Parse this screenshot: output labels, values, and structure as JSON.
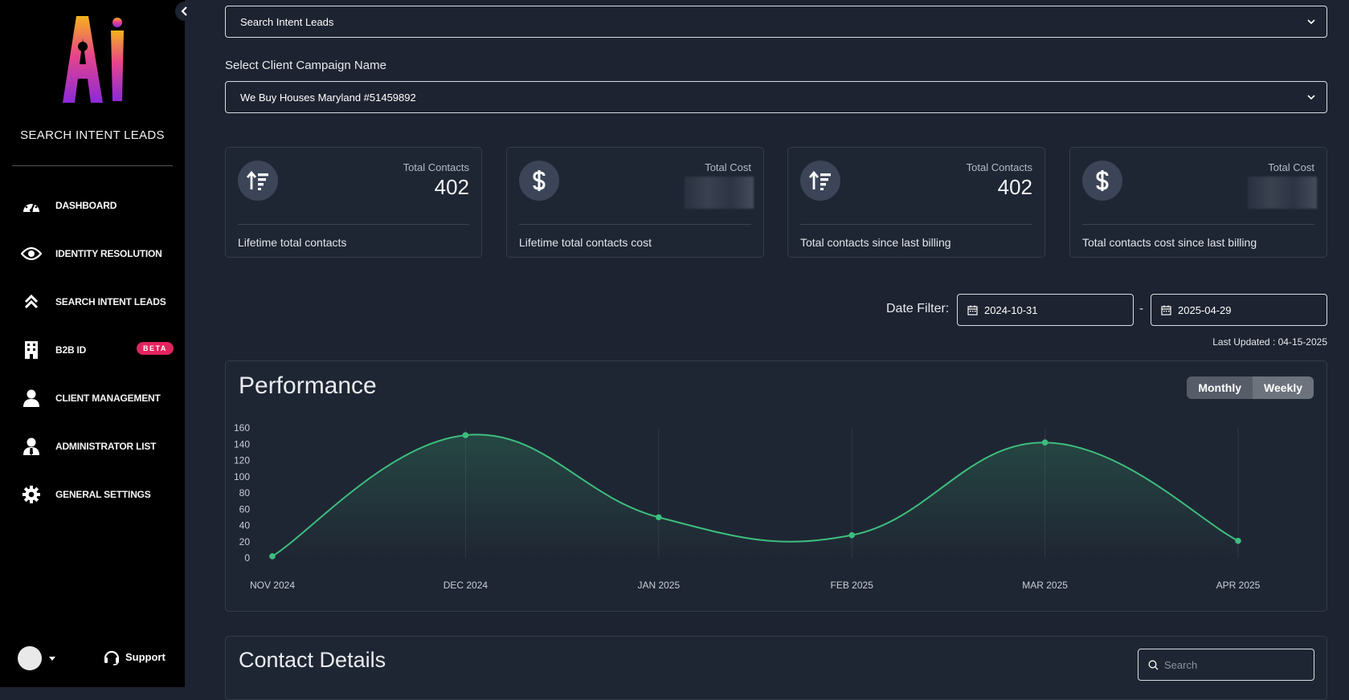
{
  "sidebar": {
    "brand": "SEARCH INTENT LEADS",
    "items": [
      {
        "label": "DASHBOARD",
        "icon": "gauge-icon"
      },
      {
        "label": "IDENTITY RESOLUTION",
        "icon": "eye-icon"
      },
      {
        "label": "SEARCH INTENT LEADS",
        "icon": "double-chevron-up-icon"
      },
      {
        "label": "B2B ID",
        "icon": "building-icon",
        "badge": "BETA"
      },
      {
        "label": "CLIENT MANAGEMENT",
        "icon": "user-icon"
      },
      {
        "label": "ADMINISTRATOR LIST",
        "icon": "user-tie-icon"
      },
      {
        "label": "GENERAL SETTINGS",
        "icon": "gear-icon"
      }
    ],
    "support_label": "Support"
  },
  "main": {
    "product_select": "Search Intent Leads",
    "campaign_label": "Select Client Campaign Name",
    "campaign_select": "We Buy Houses Maryland #51459892",
    "cards": [
      {
        "title": "Total Contacts",
        "value": "402",
        "desc": "Lifetime total contacts",
        "icon": "sort-up-icon"
      },
      {
        "title": "Total Cost",
        "value": "",
        "desc": "Lifetime total contacts cost",
        "icon": "dollar-icon"
      },
      {
        "title": "Total Contacts",
        "value": "402",
        "desc": "Total contacts since last billing",
        "icon": "sort-up-icon"
      },
      {
        "title": "Total Cost",
        "value": "",
        "desc": "Total contacts cost since last billing",
        "icon": "dollar-icon"
      }
    ],
    "date_filter_label": "Date Filter:",
    "date_from": "2024-10-31",
    "date_to": "2025-04-29",
    "date_sep": "-",
    "last_updated": "Last Updated : 04-15-2025",
    "performance_title": "Performance",
    "toggle": {
      "monthly": "Monthly",
      "weekly": "Weekly"
    },
    "contact_title": "Contact Details",
    "search_placeholder": "Search"
  },
  "colors": {
    "accent": "#3dbe7e",
    "badge": "#e0245e"
  },
  "chart_data": {
    "type": "area",
    "categories": [
      "NOV 2024",
      "DEC 2024",
      "JAN 2025",
      "FEB 2025",
      "MAR 2025",
      "APR 2025"
    ],
    "series": [
      {
        "values": [
          2,
          151,
          50,
          28,
          142,
          21
        ]
      }
    ],
    "ylim": [
      0,
      160
    ],
    "yticks": [
      0,
      20,
      40,
      60,
      80,
      100,
      120,
      140,
      160
    ],
    "grid": true
  }
}
